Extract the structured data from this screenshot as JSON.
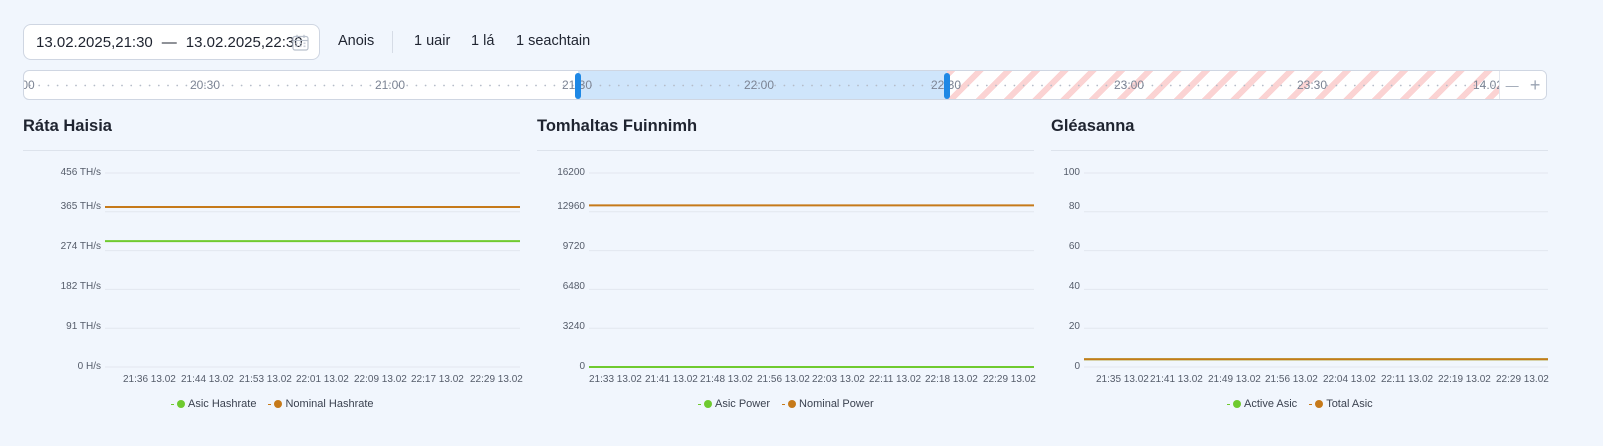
{
  "toolbar": {
    "date_from": "13.02.2025,21:30",
    "separator": "—",
    "date_to": "13.02.2025,22:30",
    "quick_now": "Anois",
    "quick_hour": "1 uair",
    "quick_day": "1 lá",
    "quick_week": "1 seachtain"
  },
  "timeline": {
    "labels": [
      "00",
      "20:30",
      "21:00",
      "21:30",
      "22:00",
      "22:30",
      "23:00",
      "23:30",
      "14.02"
    ],
    "selection_start": "21:30",
    "selection_end": "22:30",
    "zoom_out": "—",
    "zoom_in": "+"
  },
  "colors": {
    "series_green": "#6fca2f",
    "series_orange": "#c67a1a",
    "selection": "#cfe5fb",
    "handle": "#1e88e5",
    "future_stripe": "#fbd3d3"
  },
  "chart_data": [
    {
      "type": "line",
      "title": "Ráta Haisia",
      "y_tick_labels": [
        "456 TH/s",
        "365 TH/s",
        "274 TH/s",
        "182 TH/s",
        "91 TH/s",
        "0 H/s"
      ],
      "ylim": [
        0,
        456
      ],
      "x": [
        "21:36 13.02",
        "21:44 13.02",
        "21:53 13.02",
        "22:01 13.02",
        "22:09 13.02",
        "22:17 13.02",
        "22:29 13.02"
      ],
      "series": [
        {
          "name": "Asic Hashrate",
          "color": "#6fca2f",
          "values": [
            296,
            296,
            296,
            296,
            296,
            296,
            296
          ]
        },
        {
          "name": "Nominal Hashrate",
          "color": "#c67a1a",
          "values": [
            376,
            376,
            376,
            376,
            376,
            376,
            376
          ]
        }
      ],
      "grid": true,
      "legend": "bottom"
    },
    {
      "type": "line",
      "title": "Tomhaltas Fuinnimh",
      "y_tick_labels": [
        "16200",
        "12960",
        "9720",
        "6480",
        "3240",
        "0"
      ],
      "ylim": [
        0,
        16200
      ],
      "x": [
        "21:33 13.02",
        "21:41 13.02",
        "21:48 13.02",
        "21:56 13.02",
        "22:03 13.02",
        "22:11 13.02",
        "22:18 13.02",
        "22:29 13.02"
      ],
      "series": [
        {
          "name": "Asic Power",
          "color": "#6fca2f",
          "values": [
            0,
            0,
            0,
            0,
            0,
            0,
            0,
            0
          ]
        },
        {
          "name": "Nominal Power",
          "color": "#c67a1a",
          "values": [
            13500,
            13500,
            13500,
            13500,
            13500,
            13500,
            13500,
            13500
          ]
        }
      ],
      "grid": true,
      "legend": "bottom"
    },
    {
      "type": "line",
      "title": "Gléasanna",
      "y_tick_labels": [
        "100",
        "80",
        "60",
        "40",
        "20",
        "0"
      ],
      "ylim": [
        0,
        100
      ],
      "x": [
        "21:35 13.02",
        "21:41 13.02",
        "21:49 13.02",
        "21:56 13.02",
        "22:04 13.02",
        "22:11 13.02",
        "22:19 13.02",
        "22:29 13.02"
      ],
      "series": [
        {
          "name": "Active Asic",
          "color": "#6fca2f",
          "values": [
            4,
            4,
            4,
            4,
            4,
            4,
            4,
            4
          ]
        },
        {
          "name": "Total Asic",
          "color": "#c67a1a",
          "values": [
            4,
            4,
            4,
            4,
            4,
            4,
            4,
            4
          ]
        }
      ],
      "grid": true,
      "legend": "bottom"
    }
  ]
}
